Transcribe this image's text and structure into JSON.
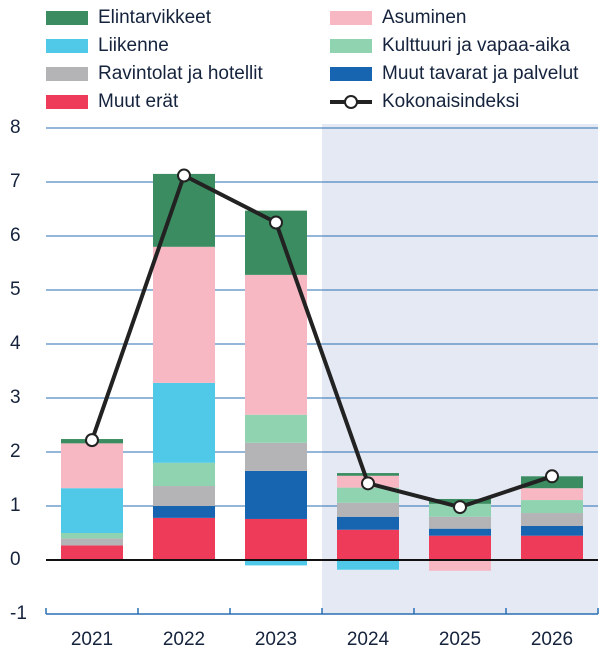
{
  "chart_data": {
    "type": "stacked_bar_line",
    "categories": [
      "2021",
      "2022",
      "2023",
      "2024",
      "2025",
      "2026"
    ],
    "series": [
      {
        "name": "Elintarvikkeet",
        "color": "#3b8c60",
        "values": [
          0.08,
          1.35,
          1.19,
          0.05,
          0.09,
          0.22
        ]
      },
      {
        "name": "Asuminen",
        "color": "#f7b8c3",
        "values": [
          0.83,
          2.52,
          2.59,
          0.22,
          -0.2,
          0.22
        ]
      },
      {
        "name": "Liikenne",
        "color": "#50c9e8",
        "values": [
          0.83,
          1.48,
          -0.1,
          -0.18,
          0,
          0
        ]
      },
      {
        "name": "Kulttuuri ja vapaa-aika",
        "color": "#8fd3b1",
        "values": [
          0.1,
          0.43,
          0.52,
          0.28,
          0.24,
          0.24
        ]
      },
      {
        "name": "Ravintolat ja hotellit",
        "color": "#b4b4b7",
        "values": [
          0.13,
          0.37,
          0.52,
          0.26,
          0.22,
          0.24
        ]
      },
      {
        "name": "Muut tavarat ja palvelut",
        "color": "#1764b1",
        "values": [
          0,
          0.22,
          0.89,
          0.24,
          0.13,
          0.18
        ]
      },
      {
        "name": "Muut erät",
        "color": "#ee3b5a",
        "values": [
          0.27,
          0.78,
          0.76,
          0.56,
          0.45,
          0.45
        ]
      },
      {
        "name": "Kokonaisindeksi",
        "type": "line",
        "color": "#222222",
        "values": [
          2.22,
          7.12,
          6.25,
          1.42,
          0.98,
          1.55
        ]
      }
    ],
    "ylim": [
      -1,
      8
    ],
    "yticks": [
      -1,
      0,
      1,
      2,
      3,
      4,
      5,
      6,
      7,
      8
    ],
    "grid": true,
    "shaded": {
      "from": 3,
      "color": "#e4e9f3"
    }
  }
}
